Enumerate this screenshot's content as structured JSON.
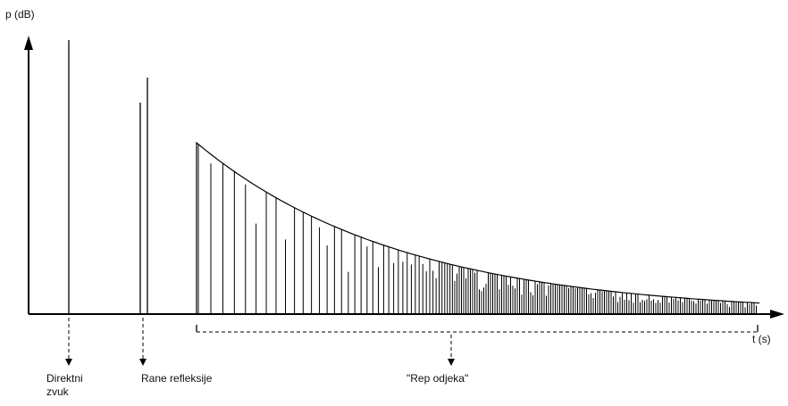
{
  "axes": {
    "y_label": "p (dB)",
    "x_label": "t (s)"
  },
  "labels": {
    "direct": [
      "Direktni",
      "zvuk"
    ],
    "early": "Rane refleksije",
    "tail": "\"Rep odjeka\""
  }
}
